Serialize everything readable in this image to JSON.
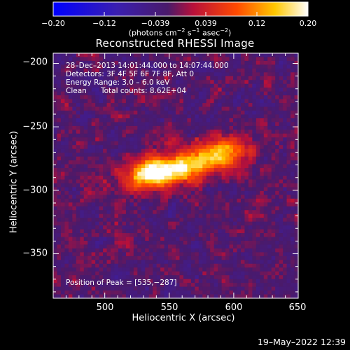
{
  "colorbar": {
    "ticks": [
      "−0.20",
      "−0.12",
      "−0.039",
      "0.039",
      "0.12",
      "0.20"
    ],
    "range": [
      -0.2,
      0.2
    ],
    "unit_prefix": "(photons cm",
    "unit_exp1": "−2",
    "unit_mid": " s",
    "unit_exp2": "−1",
    "unit_mid2": " asec",
    "unit_exp3": "−2",
    "unit_suffix": ")"
  },
  "chart_data": {
    "type": "heatmap",
    "title": "Reconstructed RHESSI Image",
    "xlabel": "Heliocentric X (arcsec)",
    "ylabel": "Heliocentric Y (arcsec)",
    "xlim": [
      460,
      650
    ],
    "ylim": [
      -385,
      -192
    ],
    "x_ticks": [
      "500",
      "550",
      "600",
      "650"
    ],
    "y_ticks": [
      "−200",
      "−250",
      "−300",
      "−350"
    ],
    "x_tick_values": [
      500,
      550,
      600,
      650
    ],
    "y_tick_values": [
      -200,
      -250,
      -300,
      -350
    ],
    "sources": [
      {
        "x": 535,
        "y": -287,
        "amplitude": 0.2
      },
      {
        "x": 560,
        "y": -283,
        "amplitude": 0.15
      },
      {
        "x": 590,
        "y": -271,
        "amplitude": 0.13
      }
    ],
    "annotations": {
      "time": "28–Dec–2013 14:01:44.000 to 14:07:44.000",
      "detectors": "Detectors: 3F 4F 5F 6F 7F 8F, Att 0",
      "energy": "Energy Range: 3.0 – 6.0 keV",
      "method": "Clean",
      "counts": "Total counts: 8.62E+04",
      "peak": "Position of Peak = [535,−287]"
    }
  },
  "timestamp": "19–May–2022 12:39"
}
